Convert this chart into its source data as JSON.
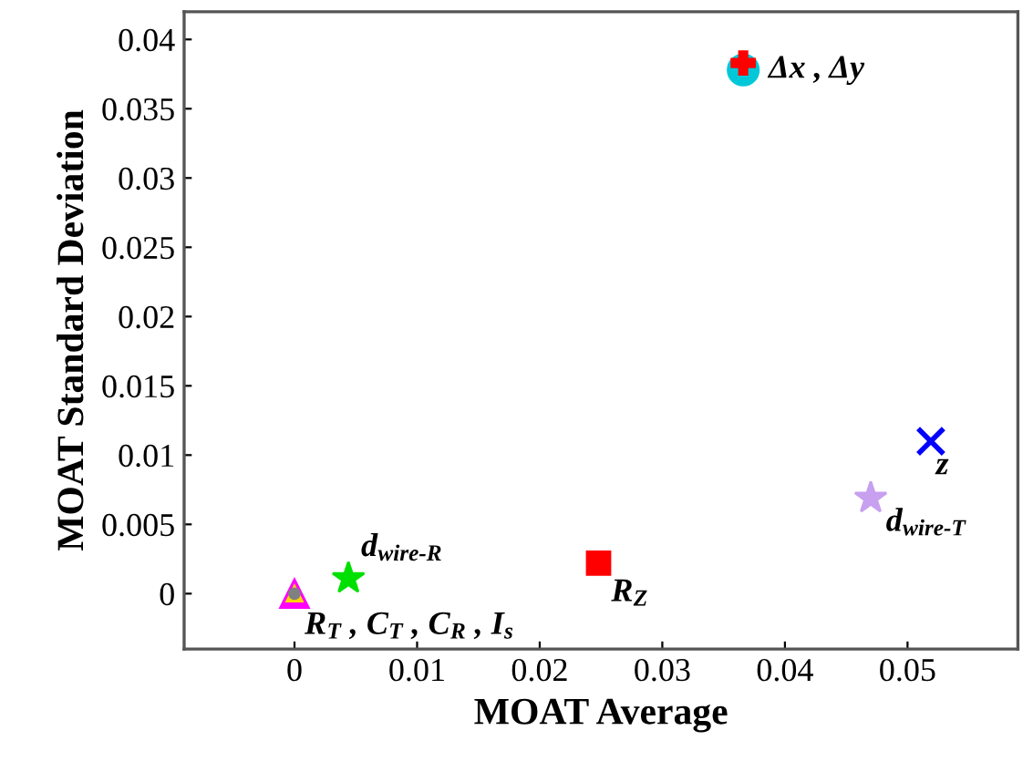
{
  "chart_data": {
    "type": "scatter",
    "xlabel": "MOAT Average",
    "ylabel": "MOAT Standard Deviation",
    "xlim": [
      -0.009,
      0.059
    ],
    "ylim": [
      -0.004,
      0.042
    ],
    "xticks": [
      0,
      0.01,
      0.02,
      0.03,
      0.04,
      0.05
    ],
    "yticks": [
      0,
      0.005,
      0.01,
      0.015,
      0.02,
      0.025,
      0.03,
      0.035,
      0.04
    ],
    "grid": false,
    "legend": false,
    "series": [
      {
        "color": "#00c8d8",
        "marker": "circle",
        "x": [
          0.0366
        ],
        "values": [
          0.0378
        ]
      },
      {
        "color": "#ff0000",
        "marker": "cross",
        "x": [
          0.0366
        ],
        "values": [
          0.0383
        ]
      },
      {
        "color": "#0000ff",
        "marker": "x",
        "x": [
          0.0519
        ],
        "values": [
          0.011
        ]
      },
      {
        "color": "#c8a0f0",
        "marker": "star",
        "x": [
          0.047
        ],
        "values": [
          0.0069
        ]
      },
      {
        "color": "#ff0000",
        "marker": "square",
        "x": [
          0.0248
        ],
        "values": [
          0.0022
        ]
      },
      {
        "color": "#00e000",
        "marker": "star",
        "x": [
          0.0044
        ],
        "values": [
          0.0011
        ]
      },
      {
        "color": "#ff00ff",
        "marker": "triangle",
        "x": [
          0.0
        ],
        "values": [
          0.0
        ]
      },
      {
        "color": "#ffd700",
        "marker": "triangle",
        "x": [
          0.0
        ],
        "values": [
          0.0
        ]
      },
      {
        "color": "#808080",
        "marker": "circle",
        "x": [
          0.0
        ],
        "values": [
          0.0
        ]
      }
    ],
    "annotations": [
      {
        "text": "Δx , Δy",
        "x": 0.0366,
        "y": 0.0378
      },
      {
        "text": "z",
        "x": 0.0519,
        "y": 0.011
      },
      {
        "text": "d$_{wire‐T}$",
        "x": 0.047,
        "y": 0.0069
      },
      {
        "text": "R$_{Z}$",
        "x": 0.0248,
        "y": 0.0022
      },
      {
        "text": "d$_{wire‐R}$",
        "x": 0.0044,
        "y": 0.0011
      },
      {
        "text": "R$_{T}$ , C$_{T}$ , C$_{R}$ , I$_{s}$",
        "x": 0.0,
        "y": 0.0
      }
    ]
  }
}
